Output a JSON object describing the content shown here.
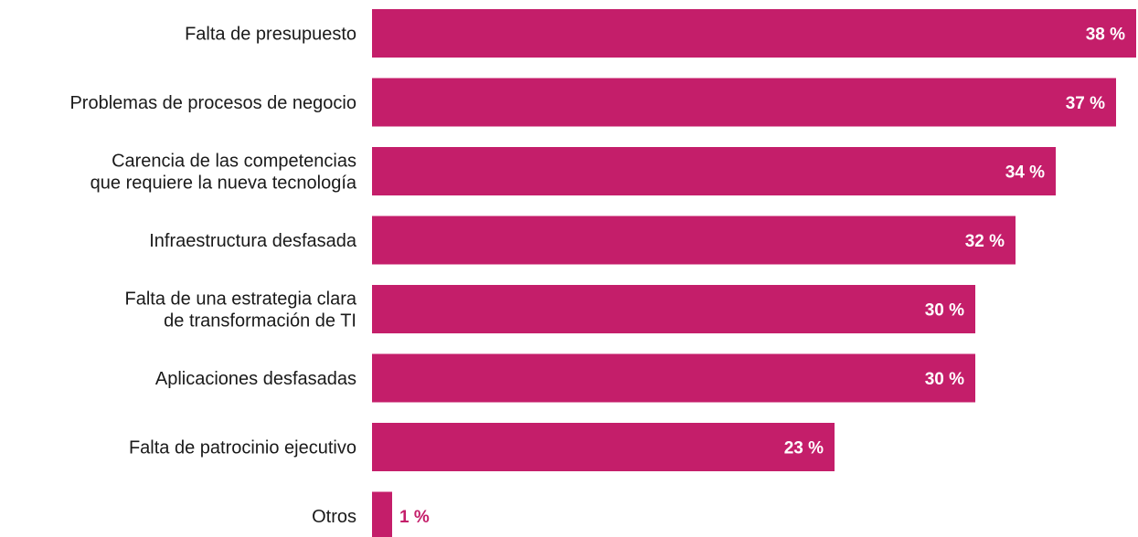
{
  "chart_data": {
    "type": "bar",
    "orientation": "horizontal",
    "categories": [
      [
        "Falta de presupuesto"
      ],
      [
        "Problemas de procesos de negocio"
      ],
      [
        "Carencia de las competencias",
        "que requiere la nueva tecnología"
      ],
      [
        "Infraestructura desfasada"
      ],
      [
        "Falta de una estrategia clara",
        "de transformación de TI"
      ],
      [
        "Aplicaciones desfasadas"
      ],
      [
        "Falta de patrocinio ejecutivo"
      ],
      [
        "Otros"
      ]
    ],
    "values": [
      38,
      37,
      34,
      32,
      30,
      30,
      23,
      1
    ],
    "value_labels": [
      "38 %",
      "37 %",
      "34 %",
      "32 %",
      "30 %",
      "30 %",
      "23 %",
      "1 %"
    ],
    "xlim": [
      0,
      38
    ],
    "unit": "%",
    "grid": false,
    "legend": "none",
    "colors": {
      "bar": "#c41e6a",
      "label_inside": "#ffffff",
      "label_outside": "#c41e6a",
      "category_text": "#1a1a1a"
    }
  }
}
